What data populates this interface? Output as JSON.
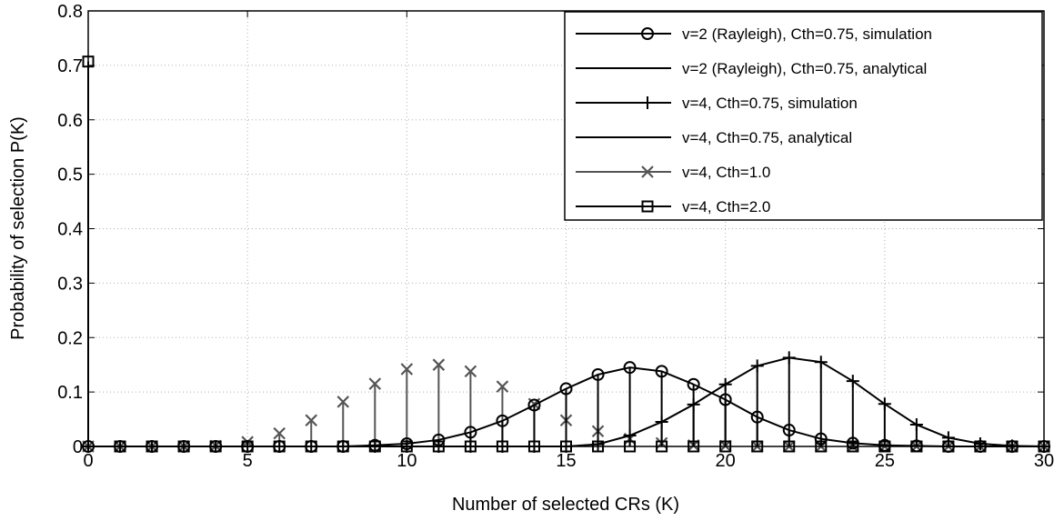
{
  "chart_data": {
    "type": "line",
    "title": "",
    "xlabel": "Number of selected CRs (K)",
    "ylabel": "Probability of selection P(K)",
    "xlim": [
      0,
      30
    ],
    "ylim": [
      0,
      0.8
    ],
    "xticks": [
      0,
      5,
      10,
      15,
      20,
      25,
      30
    ],
    "xtick_labels": [
      "0",
      "5",
      "10",
      "15",
      "20",
      "25",
      "30"
    ],
    "yticks": [
      0,
      0.1,
      0.2,
      0.3,
      0.4,
      0.5,
      0.6,
      0.7,
      0.8
    ],
    "ytick_labels": [
      "0",
      "0.1",
      "0.2",
      "0.3",
      "0.4",
      "0.5",
      "0.6",
      "0.7",
      "0.8"
    ],
    "grid": true,
    "legend_position": "top-right",
    "x": [
      0,
      1,
      2,
      3,
      4,
      5,
      6,
      7,
      8,
      9,
      10,
      11,
      12,
      13,
      14,
      15,
      16,
      17,
      18,
      19,
      20,
      21,
      22,
      23,
      24,
      25,
      26,
      27,
      28,
      29,
      30
    ],
    "series": [
      {
        "name": "v=2 (Rayleigh), Cth=0.75, simulation",
        "style": "stem",
        "marker": "circle",
        "color": "#000000",
        "values": [
          0,
          0,
          0,
          0,
          0,
          0,
          0,
          0,
          0,
          0.002,
          0.005,
          0.012,
          0.026,
          0.047,
          0.076,
          0.106,
          0.132,
          0.145,
          0.138,
          0.114,
          0.086,
          0.054,
          0.03,
          0.014,
          0.006,
          0.002,
          0.001,
          0,
          0,
          0,
          0
        ]
      },
      {
        "name": "v=2 (Rayleigh), Cth=0.75, analytical",
        "style": "line",
        "marker": "none",
        "color": "#000000",
        "values": [
          0,
          0,
          0,
          0,
          0,
          0,
          0,
          0,
          0,
          0.002,
          0.005,
          0.012,
          0.026,
          0.047,
          0.076,
          0.106,
          0.132,
          0.145,
          0.138,
          0.114,
          0.086,
          0.054,
          0.03,
          0.014,
          0.006,
          0.002,
          0.001,
          0,
          0,
          0,
          0
        ]
      },
      {
        "name": "v=4, Cth=0.75, simulation",
        "style": "stem",
        "marker": "plus",
        "color": "#000000",
        "values": [
          0,
          0,
          0,
          0,
          0,
          0,
          0,
          0,
          0,
          0,
          0,
          0,
          0,
          0,
          0,
          0,
          0.004,
          0.02,
          0.045,
          0.077,
          0.114,
          0.148,
          0.163,
          0.155,
          0.12,
          0.078,
          0.04,
          0.016,
          0.005,
          0.001,
          0
        ]
      },
      {
        "name": "v=4, Cth=0.75, analytical",
        "style": "line",
        "marker": "none",
        "color": "#000000",
        "values": [
          0,
          0,
          0,
          0,
          0,
          0,
          0,
          0,
          0,
          0,
          0,
          0,
          0,
          0,
          0,
          0,
          0.004,
          0.02,
          0.045,
          0.077,
          0.114,
          0.148,
          0.163,
          0.155,
          0.12,
          0.078,
          0.04,
          0.016,
          0.005,
          0.001,
          0
        ]
      },
      {
        "name": "v=4, Cth=1.0",
        "style": "stem",
        "marker": "x",
        "color": "#555555",
        "values": [
          0,
          0,
          0,
          0,
          0.001,
          0.008,
          0.024,
          0.048,
          0.082,
          0.115,
          0.142,
          0.15,
          0.138,
          0.11,
          0.078,
          0.048,
          0.028,
          0.014,
          0.006,
          0.002,
          0.001,
          0,
          0,
          0,
          0,
          0,
          0,
          0,
          0,
          0,
          0
        ]
      },
      {
        "name": "v=4, Cth=2.0",
        "style": "stem",
        "marker": "square",
        "color": "#000000",
        "values": [
          0.707,
          0,
          0,
          0,
          0,
          0,
          0,
          0,
          0,
          0,
          0,
          0,
          0,
          0,
          0,
          0,
          0,
          0,
          0,
          0,
          0,
          0,
          0,
          0,
          0,
          0,
          0,
          0,
          0,
          0,
          0
        ]
      }
    ]
  }
}
